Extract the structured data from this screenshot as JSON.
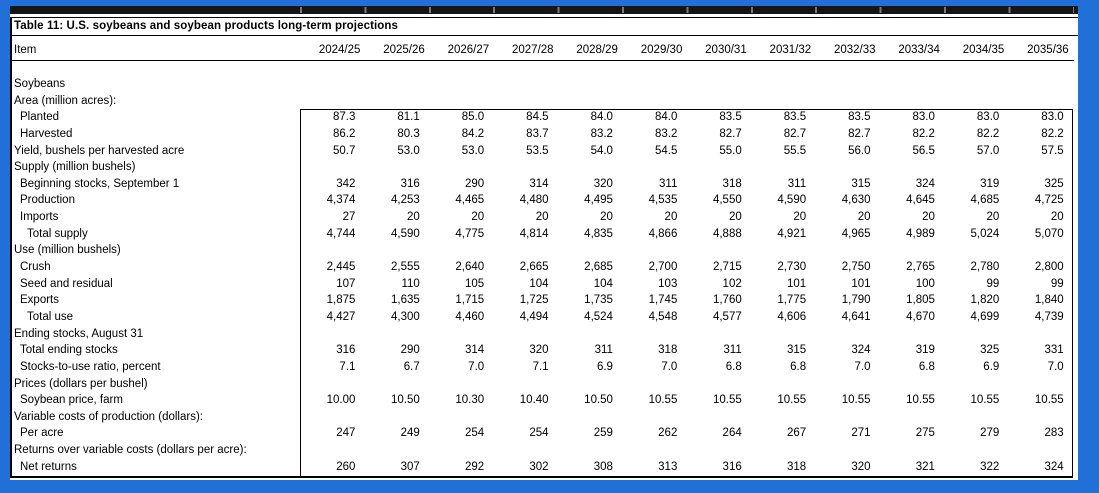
{
  "colors": {
    "frame_blue": "#2170d8",
    "band_black": "#161616",
    "sheet_white": "#ffffff",
    "text_black": "#000000"
  },
  "table": {
    "title": "Table 11: U.S. soybeans and soybean products long-term projections",
    "item_header": "Item",
    "years": [
      "2024/25",
      "2025/26",
      "2026/27",
      "2027/28",
      "2028/29",
      "2029/30",
      "2030/31",
      "2031/32",
      "2032/33",
      "2033/34",
      "2034/35",
      "2035/36"
    ],
    "rows": [
      {
        "label": "Soybeans",
        "indent": 0,
        "values": []
      },
      {
        "label": "Area (million acres):",
        "indent": 0,
        "values": []
      },
      {
        "label": "Planted",
        "indent": 1,
        "values": [
          "87.3",
          "81.1",
          "85.0",
          "84.5",
          "84.0",
          "84.0",
          "83.5",
          "83.5",
          "83.5",
          "83.0",
          "83.0",
          "83.0"
        ]
      },
      {
        "label": "Harvested",
        "indent": 1,
        "values": [
          "86.2",
          "80.3",
          "84.2",
          "83.7",
          "83.2",
          "83.2",
          "82.7",
          "82.7",
          "82.7",
          "82.2",
          "82.2",
          "82.2"
        ]
      },
      {
        "label": "Yield, bushels per harvested acre",
        "indent": 0,
        "values": [
          "50.7",
          "53.0",
          "53.0",
          "53.5",
          "54.0",
          "54.5",
          "55.0",
          "55.5",
          "56.0",
          "56.5",
          "57.0",
          "57.5"
        ]
      },
      {
        "label": "Supply (million bushels)",
        "indent": 0,
        "values": []
      },
      {
        "label": "Beginning stocks, September 1",
        "indent": 1,
        "values": [
          "342",
          "316",
          "290",
          "314",
          "320",
          "311",
          "318",
          "311",
          "315",
          "324",
          "319",
          "325"
        ]
      },
      {
        "label": "Production",
        "indent": 1,
        "values": [
          "4,374",
          "4,253",
          "4,465",
          "4,480",
          "4,495",
          "4,535",
          "4,550",
          "4,590",
          "4,630",
          "4,645",
          "4,685",
          "4,725"
        ]
      },
      {
        "label": "Imports",
        "indent": 1,
        "values": [
          "27",
          "20",
          "20",
          "20",
          "20",
          "20",
          "20",
          "20",
          "20",
          "20",
          "20",
          "20"
        ]
      },
      {
        "label": "Total supply",
        "indent": 2,
        "values": [
          "4,744",
          "4,590",
          "4,775",
          "4,814",
          "4,835",
          "4,866",
          "4,888",
          "4,921",
          "4,965",
          "4,989",
          "5,024",
          "5,070"
        ]
      },
      {
        "label": "Use (million bushels)",
        "indent": 0,
        "values": []
      },
      {
        "label": "Crush",
        "indent": 1,
        "values": [
          "2,445",
          "2,555",
          "2,640",
          "2,665",
          "2,685",
          "2,700",
          "2,715",
          "2,730",
          "2,750",
          "2,765",
          "2,780",
          "2,800"
        ]
      },
      {
        "label": "Seed and residual",
        "indent": 1,
        "values": [
          "107",
          "110",
          "105",
          "104",
          "104",
          "103",
          "102",
          "101",
          "101",
          "100",
          "99",
          "99"
        ]
      },
      {
        "label": "Exports",
        "indent": 1,
        "values": [
          "1,875",
          "1,635",
          "1,715",
          "1,725",
          "1,735",
          "1,745",
          "1,760",
          "1,775",
          "1,790",
          "1,805",
          "1,820",
          "1,840"
        ]
      },
      {
        "label": "Total use",
        "indent": 2,
        "values": [
          "4,427",
          "4,300",
          "4,460",
          "4,494",
          "4,524",
          "4,548",
          "4,577",
          "4,606",
          "4,641",
          "4,670",
          "4,699",
          "4,739"
        ]
      },
      {
        "label": "Ending stocks, August 31",
        "indent": 0,
        "values": []
      },
      {
        "label": "Total ending stocks",
        "indent": 1,
        "values": [
          "316",
          "290",
          "314",
          "320",
          "311",
          "318",
          "311",
          "315",
          "324",
          "319",
          "325",
          "331"
        ]
      },
      {
        "label": "Stocks-to-use ratio, percent",
        "indent": 1,
        "values": [
          "7.1",
          "6.7",
          "7.0",
          "7.1",
          "6.9",
          "7.0",
          "6.8",
          "6.8",
          "7.0",
          "6.8",
          "6.9",
          "7.0"
        ]
      },
      {
        "label": "Prices (dollars per bushel)",
        "indent": 0,
        "values": []
      },
      {
        "label": "Soybean price, farm",
        "indent": 1,
        "values": [
          "10.00",
          "10.50",
          "10.30",
          "10.40",
          "10.50",
          "10.55",
          "10.55",
          "10.55",
          "10.55",
          "10.55",
          "10.55",
          "10.55"
        ]
      },
      {
        "label": "Variable costs of production (dollars):",
        "indent": 0,
        "values": []
      },
      {
        "label": "Per acre",
        "indent": 1,
        "values": [
          "247",
          "249",
          "254",
          "254",
          "259",
          "262",
          "264",
          "267",
          "271",
          "275",
          "279",
          "283"
        ]
      },
      {
        "label": "Returns over variable costs (dollars per acre):",
        "indent": 0,
        "values": []
      },
      {
        "label": "Net returns",
        "indent": 1,
        "values": [
          "260",
          "307",
          "292",
          "302",
          "308",
          "313",
          "316",
          "318",
          "320",
          "321",
          "322",
          "324"
        ]
      }
    ]
  }
}
